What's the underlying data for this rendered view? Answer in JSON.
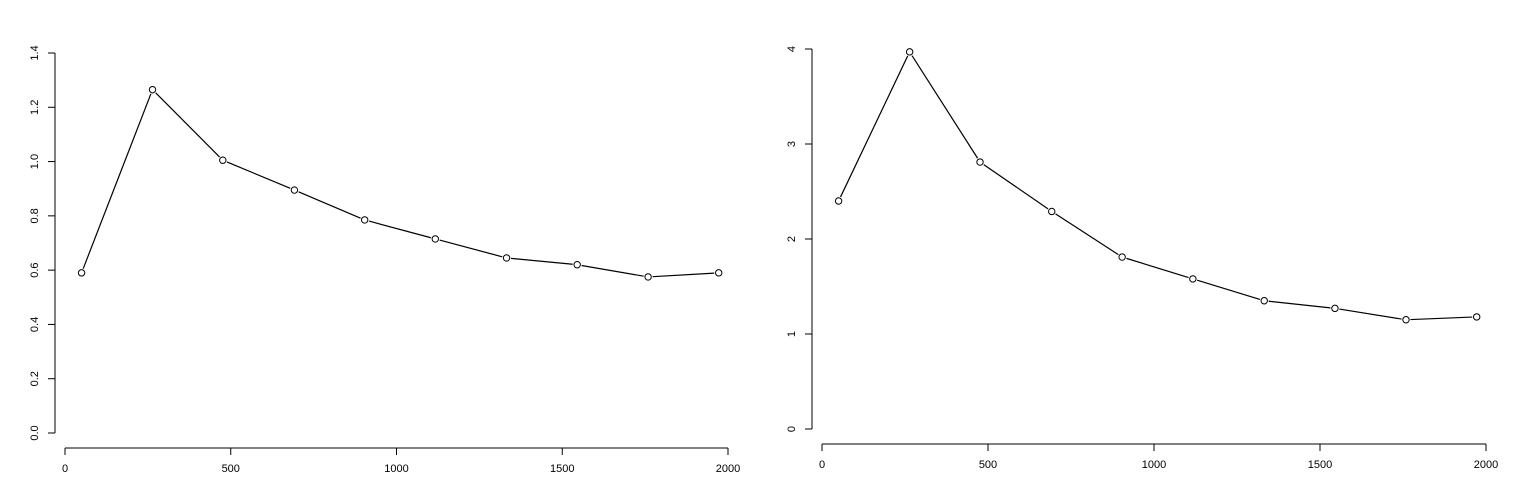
{
  "chart_data": [
    {
      "type": "line",
      "title": "",
      "xlabel": "",
      "ylabel": "",
      "x": [
        50,
        264,
        476,
        692,
        904,
        1117,
        1332,
        1545,
        1759,
        1972
      ],
      "series": [
        {
          "values": [
            0.59,
            1.265,
            1.005,
            0.895,
            0.785,
            0.715,
            0.645,
            0.62,
            0.575,
            0.59
          ]
        }
      ],
      "xlim": [
        0,
        2000
      ],
      "ylim": [
        0,
        1.4
      ],
      "x_ticks": [
        "0",
        "500",
        "1000",
        "1500",
        "2000"
      ],
      "y_ticks": [
        "0.0",
        "0.2",
        "0.4",
        "0.6",
        "0.8",
        "1.0",
        "1.2",
        "1.4"
      ],
      "grid": false,
      "markers": "open-circle",
      "line_color": "#000000"
    },
    {
      "type": "line",
      "title": "",
      "xlabel": "",
      "ylabel": "",
      "x": [
        50,
        264,
        476,
        692,
        904,
        1117,
        1332,
        1545,
        1759,
        1972
      ],
      "series": [
        {
          "values": [
            2.4,
            3.97,
            2.81,
            2.29,
            1.81,
            1.58,
            1.35,
            1.27,
            1.15,
            1.18
          ]
        }
      ],
      "xlim": [
        0,
        2000
      ],
      "ylim": [
        0,
        4
      ],
      "x_ticks": [
        "0",
        "500",
        "1000",
        "1500",
        "2000"
      ],
      "y_ticks": [
        "0",
        "1",
        "2",
        "3",
        "4"
      ],
      "grid": false,
      "markers": "open-circle",
      "line_color": "#000000"
    }
  ]
}
